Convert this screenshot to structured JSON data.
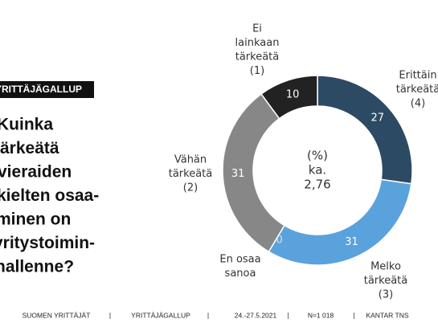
{
  "chart_data": {
    "type": "donut",
    "tag": "YRITTÄJÄGALLUP",
    "title_lines": [
      "Kuinka",
      "tärkeätä",
      "vieraiden",
      "kielten osaa-",
      "minen on",
      "yritystoimin-",
      "nallenne?"
    ],
    "center_lines": [
      "(%)",
      "ka.",
      "2,76"
    ],
    "categories": [
      [
        "Erittäin",
        "tärkeätä",
        "(4)"
      ],
      [
        "Melko",
        "tärkeätä",
        "(3)"
      ],
      [
        "En osaa",
        "sanoa"
      ],
      [
        "Vähän",
        "tärkeätä",
        "(2)"
      ],
      [
        "Ei",
        "lainkaan",
        "tärkeätä",
        "(1)"
      ]
    ],
    "values": [
      27,
      31,
      0,
      31,
      10
    ],
    "colors": [
      "#2c4a63",
      "#5aa2dc",
      "#9a9a9a",
      "#878787",
      "#222222"
    ],
    "footer": [
      "SUOMEN YRITTÄJÄT",
      "YRITTÄJÄGALLUP",
      "24.-27.5.2021",
      "N=1 018",
      "KANTAR TNS"
    ]
  }
}
